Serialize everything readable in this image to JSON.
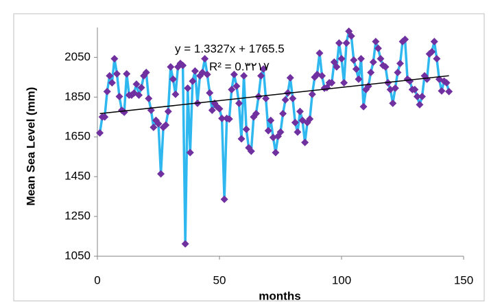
{
  "chart_data": {
    "type": "line",
    "y_label": "Mean Sea Level (mm)",
    "x_label": "months",
    "x": [
      1,
      2,
      3,
      4,
      5,
      6,
      7,
      8,
      9,
      10,
      11,
      12,
      13,
      14,
      15,
      16,
      17,
      18,
      19,
      20,
      21,
      22,
      23,
      24,
      25,
      26,
      27,
      28,
      29,
      30,
      31,
      32,
      33,
      34,
      35,
      36,
      37,
      38,
      39,
      40,
      41,
      42,
      43,
      44,
      45,
      46,
      47,
      48,
      49,
      50,
      51,
      52,
      53,
      54,
      55,
      56,
      57,
      58,
      59,
      60,
      61,
      62,
      63,
      64,
      65,
      66,
      67,
      68,
      69,
      70,
      71,
      72,
      73,
      74,
      75,
      76,
      77,
      78,
      79,
      80,
      81,
      82,
      83,
      84,
      85,
      86,
      87,
      88,
      89,
      90,
      91,
      92,
      93,
      94,
      95,
      96,
      97,
      98,
      99,
      100,
      101,
      102,
      103,
      104,
      105,
      106,
      107,
      108,
      109,
      110,
      111,
      112,
      113,
      114,
      115,
      116,
      117,
      118,
      119,
      120,
      121,
      122,
      123,
      124,
      125,
      126,
      127,
      128,
      129,
      130,
      131,
      132,
      133,
      134,
      135,
      136,
      137,
      138,
      139,
      140,
      141,
      142,
      143,
      144
    ],
    "series": [
      {
        "line_color": "#2fb8f0",
        "marker_color": "#7030a0",
        "values": [
          1670,
          1750,
          1750,
          1878,
          1957,
          1922,
          2043,
          1967,
          1853,
          1784,
          1774,
          1967,
          1860,
          1860,
          1870,
          1915,
          1860,
          1898,
          1957,
          1974,
          1843,
          1784,
          1698,
          1733,
          1716,
          1464,
          1698,
          1709,
          1778,
          2002,
          1940,
          1864,
          2002,
          2019,
          2009,
          1112,
          1895,
          1571,
          1930,
          1981,
          1819,
          1957,
          1974,
          2043,
          1964,
          1871,
          1784,
          1819,
          1802,
          1791,
          1743,
          1336,
          1743,
          1740,
          1888,
          1964,
          1905,
          1819,
          1640,
          1957,
          1688,
          1595,
          1578,
          1750,
          1767,
          1853,
          1957,
          1991,
          1843,
          1681,
          1733,
          1647,
          1571,
          1653,
          1674,
          1767,
          1836,
          1871,
          1947,
          1843,
          1722,
          1674,
          1778,
          1733,
          1622,
          1722,
          1740,
          1864,
          1950,
          1964,
          2071,
          1957,
          1895,
          1898,
          1922,
          1922,
          2026,
          2002,
          2122,
          2043,
          1922,
          2122,
          2181,
          2157,
          2036,
          1991,
          1940,
          2043,
          1802,
          1888,
          1905,
          1974,
          2026,
          2129,
          2095,
          2043,
          2009,
          2002,
          1922,
          1888,
          1819,
          1895,
          1974,
          2019,
          2129,
          2140,
          1940,
          1930,
          1888,
          1888,
          1853,
          1812,
          1853,
          1957,
          1940,
          2067,
          2078,
          2129,
          2043,
          1940,
          1881,
          1930,
          1922,
          1878
        ]
      }
    ],
    "trendline": {
      "equation": "y = 1.3327x + 1765.5",
      "r2": "R² = 0.۳۲۱۷",
      "slope": 1.3327,
      "intercept": 1765.5,
      "color": "#000000"
    },
    "xlim": [
      0,
      150
    ],
    "xticks": [
      0,
      50,
      100,
      150
    ],
    "ylim": [
      1050,
      2200
    ],
    "yticks": [
      1050,
      1250,
      1450,
      1650,
      1850,
      2050
    ]
  }
}
